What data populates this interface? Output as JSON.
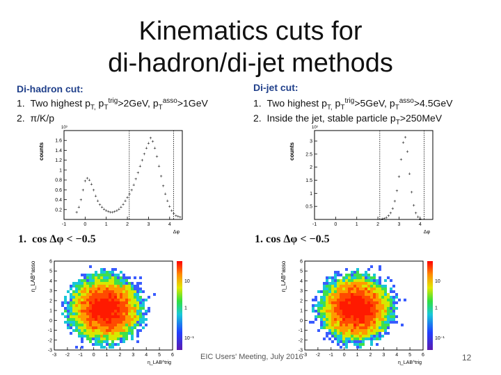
{
  "title_line1": "Kinematics cuts for",
  "title_line2": "di-hadron/di-jet methods",
  "left": {
    "heading": "Di-hadron cut:",
    "item1_num": "1.",
    "item1_a": "Two highest p",
    "item1_b": "T,",
    "item1_c": " p",
    "item1_d": "T",
    "item1_e": "trig",
    "item1_f": ">2GeV, p",
    "item1_g": "T",
    "item1_h": "asso",
    "item1_i": ">1GeV",
    "item2_num": "2.",
    "item2_text": "π/K/p",
    "cond_num": "1.",
    "cond_text": "cos Δφ < −0.5"
  },
  "right": {
    "heading": "Di-jet cut:",
    "item1_num": "1.",
    "item1_a": "Two highest p",
    "item1_b": "T,",
    "item1_c": " p",
    "item1_d": "T",
    "item1_e": "trig",
    "item1_f": ">5GeV, p",
    "item1_g": "T",
    "item1_h": "asso",
    "item1_i": ">4.5GeV",
    "item2_num": "2.",
    "item2_a": "Inside the jet, stable particle p",
    "item2_b": "T",
    "item2_c": ">250MeV",
    "cond_num": "1.",
    "cond_text": "cos Δφ < −0.5"
  },
  "footer": "EIC Users' Meeting, July 2016",
  "page_number": "12",
  "chart_data": [
    {
      "type": "scatter",
      "id": "dihadron-dphi",
      "xlabel": "Δφ",
      "ylabel": "counts",
      "multiplier": "10³",
      "xlim": [
        -1,
        4.6
      ],
      "ylim": [
        0,
        1.8
      ],
      "xticks": [
        "-1",
        "0",
        "1",
        "2",
        "3",
        "4"
      ],
      "yticks": [
        "0.2",
        "0.4",
        "0.6",
        "0.8",
        "1",
        "1.2",
        "1.4",
        "1.6"
      ],
      "cut_lines": [
        2.09,
        4.19
      ],
      "x": [
        -0.4,
        -0.3,
        -0.2,
        -0.1,
        0.0,
        0.1,
        0.2,
        0.3,
        0.4,
        0.5,
        0.6,
        0.7,
        0.8,
        0.9,
        1.0,
        1.1,
        1.2,
        1.3,
        1.4,
        1.5,
        1.6,
        1.7,
        1.8,
        1.9,
        2.0,
        2.1,
        2.2,
        2.3,
        2.4,
        2.5,
        2.6,
        2.7,
        2.8,
        2.9,
        3.0,
        3.1,
        3.2,
        3.3,
        3.4,
        3.5,
        3.6,
        3.7,
        3.8,
        3.9,
        4.0,
        4.1,
        4.2,
        4.3,
        4.4,
        4.5
      ],
      "y": [
        0.15,
        0.25,
        0.4,
        0.6,
        0.78,
        0.84,
        0.8,
        0.72,
        0.6,
        0.48,
        0.38,
        0.3,
        0.25,
        0.21,
        0.18,
        0.16,
        0.15,
        0.15,
        0.16,
        0.18,
        0.21,
        0.25,
        0.31,
        0.38,
        0.45,
        0.52,
        0.6,
        0.7,
        0.82,
        0.95,
        1.08,
        1.2,
        1.33,
        1.45,
        1.55,
        1.65,
        1.58,
        1.45,
        1.28,
        1.08,
        0.88,
        0.68,
        0.52,
        0.38,
        0.27,
        0.18,
        0.12,
        0.08,
        0.06,
        0.05
      ]
    },
    {
      "type": "scatter",
      "id": "dijet-dphi",
      "xlabel": "Δφ",
      "ylabel": "counts",
      "multiplier": "10³",
      "xlim": [
        -1,
        4.6
      ],
      "ylim": [
        0,
        3.4
      ],
      "xticks": [
        "-1",
        "0",
        "1",
        "2",
        "3",
        "4"
      ],
      "yticks": [
        "0.5",
        "1",
        "1.5",
        "2",
        "2.5",
        "3"
      ],
      "cut_lines": [
        2.09,
        4.19
      ],
      "x": [
        2.2,
        2.3,
        2.4,
        2.5,
        2.6,
        2.7,
        2.8,
        2.9,
        3.0,
        3.1,
        3.2,
        3.3,
        3.4,
        3.5,
        3.6,
        3.7,
        3.8,
        3.9,
        4.0
      ],
      "y": [
        0.02,
        0.04,
        0.08,
        0.15,
        0.25,
        0.42,
        0.7,
        1.1,
        1.65,
        2.3,
        2.95,
        3.15,
        2.6,
        1.75,
        1.05,
        0.55,
        0.25,
        0.1,
        0.03
      ]
    },
    {
      "type": "heatmap",
      "id": "dihadron-eta",
      "xlabel": "η_LAB^trig",
      "ylabel": "η_LAB^asso",
      "xticks": [
        "-3",
        "-2",
        "-1",
        "0",
        "1",
        "2",
        "3",
        "4",
        "5",
        "6"
      ],
      "yticks": [
        "-3",
        "-2",
        "-1",
        "0",
        "1",
        "2",
        "3",
        "4",
        "5",
        "6"
      ],
      "colorbar_ticks": [
        "10",
        "1",
        "10⁻¹"
      ]
    },
    {
      "type": "heatmap",
      "id": "dijet-eta",
      "xlabel": "η_LAB^trig",
      "ylabel": "η_LAB^asso",
      "xticks": [
        "-3",
        "-2",
        "-1",
        "0",
        "1",
        "2",
        "3",
        "4",
        "5",
        "6"
      ],
      "yticks": [
        "-3",
        "-2",
        "-1",
        "0",
        "1",
        "2",
        "3",
        "4",
        "5",
        "6"
      ],
      "colorbar_ticks": [
        "10",
        "1",
        "10⁻¹"
      ]
    }
  ]
}
